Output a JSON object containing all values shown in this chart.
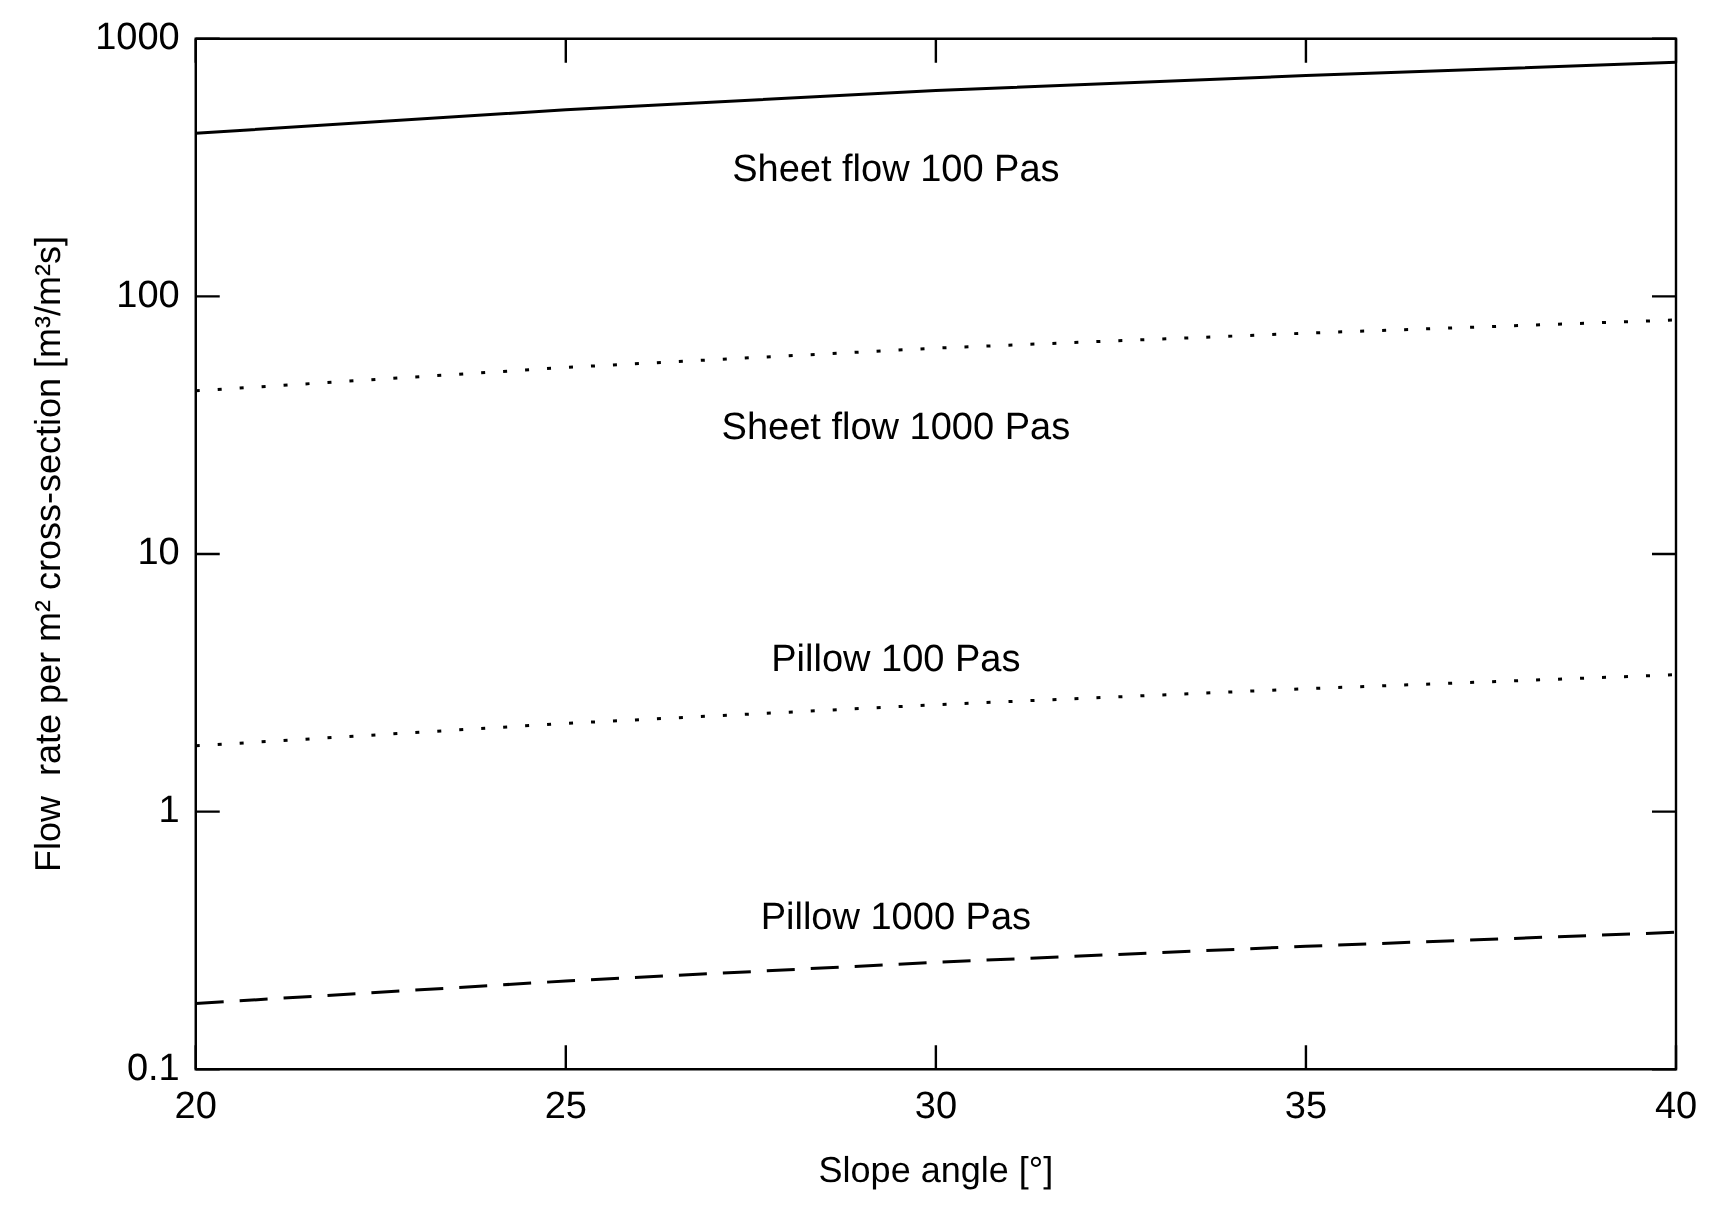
{
  "chart_data": {
    "type": "line",
    "xlabel": "Slope angle [°]",
    "ylabel": "Flow  rate per m² cross-section [m³/m²s]",
    "x": [
      20,
      25,
      30,
      35,
      40
    ],
    "series": [
      {
        "name": "Sheet flow 100 Pas",
        "color": "#000000",
        "line_style": "solid",
        "values": [
          430,
          530,
          630,
          720,
          810
        ]
      },
      {
        "name": "Sheet flow 1000 Pas",
        "color": "#000000",
        "line_style": "dotted",
        "values": [
          43,
          53,
          63,
          72,
          81
        ]
      },
      {
        "name": "Pillow 100 Pas",
        "color": "#000000",
        "line_style": "dotted",
        "values": [
          1.8,
          2.2,
          2.6,
          3.0,
          3.4
        ]
      },
      {
        "name": "Pillow 1000 Pas",
        "color": "#000000",
        "line_style": "dashed",
        "values": [
          0.18,
          0.22,
          0.26,
          0.3,
          0.34
        ]
      }
    ],
    "xlim": [
      20,
      40
    ],
    "xticks": [
      20,
      25,
      30,
      35,
      40
    ],
    "ylim": [
      0.1,
      1000
    ],
    "yticks": [
      0.1,
      1,
      10,
      100,
      1000
    ],
    "log": "y",
    "grid": false,
    "legend": false,
    "marker": "none"
  }
}
